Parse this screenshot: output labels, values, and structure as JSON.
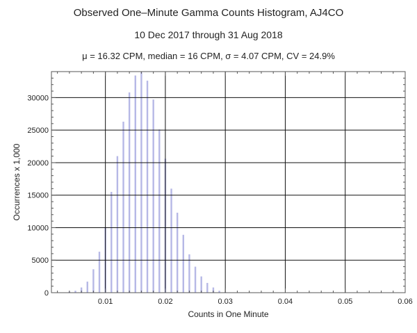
{
  "header": {
    "title": "Observed One–Minute Gamma Counts Histogram, AJ4CO",
    "subtitle": "10 Dec 2017 through 31 Aug 2018",
    "stats": "μ = 16.32 CPM,   median = 16 CPM,   σ = 4.07 CPM,   CV = 24.9%"
  },
  "chart_data": {
    "type": "bar",
    "xlabel": "Counts in One Minute",
    "ylabel": "Occurrences x 1,000",
    "xlim": [
      0.001,
      0.06
    ],
    "ylim": [
      0,
      34000
    ],
    "x_ticks": [
      0.01,
      0.02,
      0.03,
      0.04,
      0.05,
      0.06
    ],
    "x_tick_labels": [
      "0.01",
      "0.02",
      "0.03",
      "0.04",
      "0.05",
      "0.06"
    ],
    "y_ticks": [
      0,
      5000,
      10000,
      15000,
      20000,
      25000,
      30000
    ],
    "y_tick_labels": [
      "0",
      "5000",
      "10000",
      "15000",
      "20000",
      "25000",
      "30000"
    ],
    "grid": true,
    "bar_color": "#b6b8e6",
    "series": [
      {
        "x": [
          0.003,
          0.004,
          0.005,
          0.006,
          0.007,
          0.008,
          0.009,
          0.01,
          0.011,
          0.012,
          0.013,
          0.014,
          0.015,
          0.016,
          0.017,
          0.018,
          0.019,
          0.02,
          0.021,
          0.022,
          0.023,
          0.024,
          0.025,
          0.026,
          0.027,
          0.028,
          0.029,
          0.03
        ],
        "values": [
          50,
          150,
          300,
          800,
          1700,
          3600,
          6300,
          10100,
          15500,
          21000,
          26300,
          30800,
          33400,
          33900,
          32600,
          29700,
          25100,
          20600,
          16000,
          12300,
          8900,
          5900,
          4000,
          2500,
          1500,
          800,
          300,
          100
        ]
      }
    ]
  }
}
